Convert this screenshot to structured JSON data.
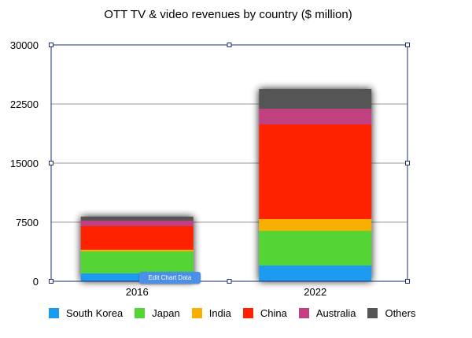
{
  "chart_data": {
    "type": "bar",
    "stacked": true,
    "title": "OTT TV & video revenues by country ($ million)",
    "categories": [
      "2016",
      "2022"
    ],
    "ylim": [
      0,
      30000
    ],
    "yticks": [
      "0",
      "7500",
      "15000",
      "22500",
      "30000"
    ],
    "grid": true,
    "legend_position": "bottom",
    "series": [
      {
        "name": "South Korea",
        "color": "#1a9bf0",
        "values": [
          1000,
          2000
        ]
      },
      {
        "name": "Japan",
        "color": "#55d436",
        "values": [
          2800,
          4400
        ]
      },
      {
        "name": "India",
        "color": "#f8b000",
        "values": [
          200,
          1500
        ]
      },
      {
        "name": "China",
        "color": "#ff2200",
        "values": [
          3000,
          12000
        ]
      },
      {
        "name": "Australia",
        "color": "#c04080",
        "values": [
          700,
          2000
        ]
      },
      {
        "name": "Others",
        "color": "#555555",
        "values": [
          500,
          2500
        ]
      }
    ]
  },
  "edit_button": {
    "label": "Edit Chart Data"
  }
}
